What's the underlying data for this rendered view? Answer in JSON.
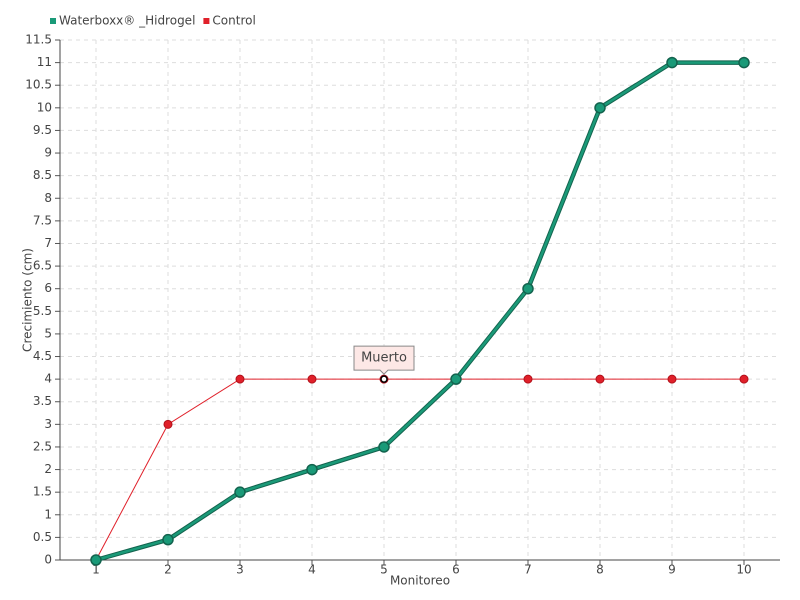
{
  "chart_data": {
    "type": "line",
    "x": [
      1,
      2,
      3,
      4,
      5,
      6,
      7,
      8,
      9,
      10
    ],
    "series": [
      {
        "name": "Waterboxx® _Hidrogel",
        "color": "#1a9a78",
        "values": [
          0,
          0.45,
          1.5,
          2,
          2.5,
          4,
          6,
          10,
          11,
          11
        ]
      },
      {
        "name": "Control",
        "color": "#e0202a",
        "values": [
          0,
          3,
          4,
          4,
          4,
          4,
          4,
          4,
          4,
          4
        ]
      }
    ],
    "xlabel": "Monitoreo",
    "ylabel": "Crecimiento (cm)",
    "xlim": [
      0.5,
      10.5
    ],
    "xticks": [
      1,
      2,
      3,
      4,
      5,
      6,
      7,
      8,
      9,
      10
    ],
    "ylim": [
      0,
      11.5
    ],
    "yticks": [
      0,
      0.5,
      1,
      1.5,
      2,
      2.5,
      3,
      3.5,
      4,
      4.5,
      5,
      5.5,
      6,
      6.5,
      7,
      7.5,
      8,
      8.5,
      9,
      9.5,
      10,
      10.5,
      11,
      11.5
    ],
    "grid": true,
    "legend": "top-left",
    "annotations": [
      {
        "text": "Muerto",
        "x": 5,
        "y": 4
      }
    ]
  }
}
